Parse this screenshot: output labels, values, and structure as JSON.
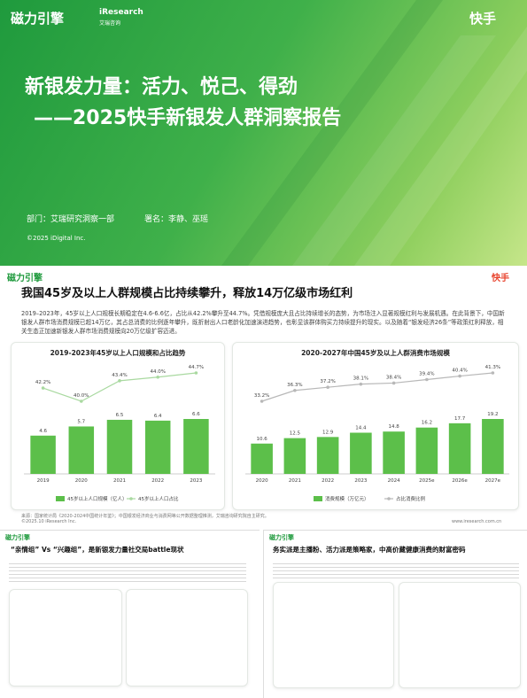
{
  "cover": {
    "brand": "磁力引擎",
    "partner": "iResearch",
    "partner_cn": "艾瑞咨询",
    "platform": "快手",
    "title": "新银发力量：活力、悦己、得劲",
    "subtitle": "——2025快手新银发人群洞察报告",
    "department": "部门：艾瑞研究洞察一部",
    "authors": "署名：李静、巫瑶",
    "copyright": "©2025 iDigital Inc."
  },
  "slide1": {
    "brand": "磁力引擎",
    "platform": "快手",
    "title": "我国45岁及以上人群规模占比持续攀升，释放14万亿级市场红利",
    "body": "2019–2023年，45岁以上人口规模长期稳定在4.6-6.6亿，占比从42.2%攀升至44.7%。凭借规模庞大且占比持续增长的态势，为市场注入显著规模红利与发展机遇。在此背景下，中国新银发人群市场消费规模已超14万亿，其占总消费的比例逐年攀升，既折射出人口老龄化加速演进趋势，也彰显该群体购买力持续提升的现实。以及随着“银发经济26条”等政策红利释放，相关生态正加速新银发人群市场消费规模向20万亿级扩容迈进。",
    "charts": [
      {
        "type": "combo",
        "title": "2019-2023年45岁以上人口规模和占比趋势",
        "categories": [
          "2019",
          "2020",
          "2021",
          "2022",
          "2023"
        ],
        "series": [
          {
            "name": "45岁以上人口规模（亿人）",
            "color": "#5cbf4a",
            "values": [
              4.6,
              5.7,
              6.5,
              6.4,
              6.6
            ]
          },
          {
            "name": "45岁以上人口占比",
            "color": "#a9d9a0",
            "axis": "y2",
            "values": [
              42.2,
              40.0,
              43.4,
              44.0,
              44.7
            ],
            "value_labels": [
              "42.2%",
              "40.0%",
              "43.4%",
              "44.0%",
              "44.7%"
            ]
          }
        ]
      },
      {
        "type": "combo",
        "title": "2020-2027年中国45岁及以上人群消费市场规模",
        "categories": [
          "2020",
          "2021",
          "2022",
          "2023",
          "2024",
          "2025e",
          "2026e",
          "2027e"
        ],
        "series": [
          {
            "name": "消费规模（万亿元）",
            "color": "#5cbf4a",
            "values": [
              10.6,
              12.5,
              12.9,
              14.4,
              14.8,
              16.2,
              17.7,
              19.2
            ]
          },
          {
            "name": "占比消费比例",
            "color": "#b8b8b8",
            "axis": "y2",
            "values": [
              33.2,
              36.3,
              37.2,
              38.1,
              38.4,
              39.4,
              40.4,
              41.3
            ],
            "value_labels": [
              "33.2%",
              "36.3%",
              "37.2%",
              "38.1%",
              "38.4%",
              "39.4%",
              "40.4%",
              "41.3%"
            ]
          }
        ]
      }
    ],
    "source": "来源：国家统计局《2020-2024中国统计年鉴》；中国银发经济商业与消费网等公开数据整理推测，艾瑞咨询研究院自主研究。",
    "copyright": "©2025.10 iResearch Inc.",
    "website": "www.iresearch.com.cn"
  },
  "slide2": {
    "brand": "磁力引擎",
    "title": "“亲情组” Vs “兴趣组”，是新银发力量社交局battle现状"
  },
  "slide3": {
    "brand": "磁力引擎",
    "title": "务实派是主播粉、活力派是策略家，中高价藏健康消费的财富密码"
  }
}
